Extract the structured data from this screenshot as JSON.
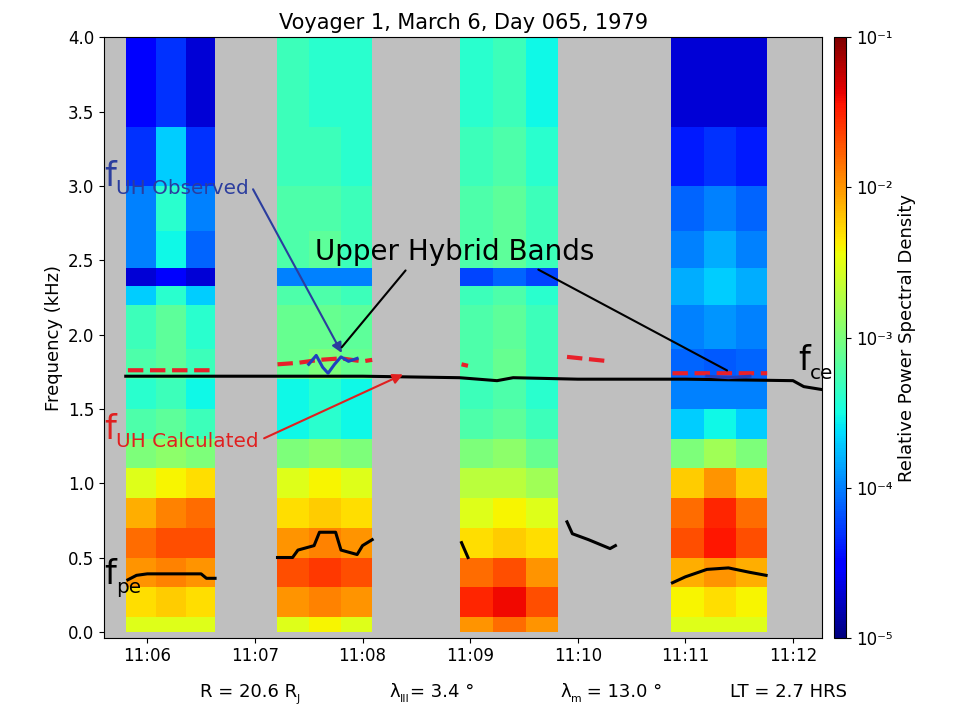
{
  "chart_data": {
    "type": "heatmap",
    "title": "Voyager 1, March 6, Day 065, 1979",
    "y_label": "Frequency (kHz)",
    "xlim": [
      5.6,
      12.27
    ],
    "xticks": [
      {
        "value": 6,
        "label": "11:06"
      },
      {
        "value": 7,
        "label": "11:07"
      },
      {
        "value": 8,
        "label": "11:08"
      },
      {
        "value": 9,
        "label": "11:09"
      },
      {
        "value": 10,
        "label": "11:10"
      },
      {
        "value": 11,
        "label": "11:11"
      },
      {
        "value": 12,
        "label": "11:12"
      }
    ],
    "ylim": [
      -0.04,
      4.0
    ],
    "yticks": [
      0.0,
      0.5,
      1.0,
      1.5,
      2.0,
      2.5,
      3.0,
      3.5,
      4.0
    ],
    "frequency_bins": [
      0.0,
      0.1,
      0.3,
      0.5,
      0.7,
      0.9,
      1.1,
      1.3,
      1.5,
      1.7,
      1.9,
      2.2,
      2.33,
      2.45,
      2.7,
      3.0,
      3.4,
      4.0
    ],
    "segments": [
      {
        "x": [
          5.8,
          6.08,
          6.36,
          6.63
        ],
        "cells": [
          [
            0.003,
            0.005,
            0.01,
            0.015,
            0.008,
            0.003,
            0.001,
            0.0006,
            0.0004,
            0.0006,
            0.0005,
            0.0002,
            2e-05,
            0.0001,
            0.0001,
            5e-05,
            3e-05
          ],
          [
            0.003,
            0.006,
            0.012,
            0.02,
            0.012,
            0.004,
            0.0012,
            0.0007,
            0.0005,
            0.0007,
            0.0007,
            0.0004,
            3e-05,
            0.0003,
            0.0004,
            0.0002,
            5e-05
          ],
          [
            0.003,
            0.005,
            0.01,
            0.02,
            0.015,
            0.005,
            0.001,
            0.0005,
            0.0003,
            0.0005,
            0.0004,
            0.0002,
            2e-05,
            8e-05,
            0.0001,
            5e-05,
            2e-05
          ]
        ]
      },
      {
        "x": [
          7.21,
          7.5,
          7.8,
          8.09
        ],
        "cells": [
          [
            0.003,
            0.01,
            0.02,
            0.01,
            0.005,
            0.003,
            0.001,
            0.0003,
            0.0003,
            0.0008,
            0.0008,
            0.0006,
            0.0001,
            0.0006,
            0.0006,
            0.0005,
            0.0005
          ],
          [
            0.004,
            0.012,
            0.025,
            0.012,
            0.006,
            0.004,
            0.0012,
            0.0004,
            0.0004,
            0.001,
            0.0008,
            0.0006,
            0.0001,
            0.0007,
            0.0006,
            0.0005,
            0.0004
          ],
          [
            0.003,
            0.01,
            0.02,
            0.01,
            0.005,
            0.003,
            0.001,
            0.0003,
            0.0003,
            0.0008,
            0.0007,
            0.0005,
            0.0001,
            0.0005,
            0.0005,
            0.0004,
            0.0004
          ]
        ]
      },
      {
        "x": [
          8.91,
          9.21,
          9.52,
          9.82
        ],
        "cells": [
          [
            0.01,
            0.03,
            0.015,
            0.005,
            0.003,
            0.002,
            0.001,
            0.0006,
            0.0005,
            0.0006,
            0.0006,
            0.0005,
            6e-05,
            0.0006,
            0.0006,
            0.0005,
            0.0004
          ],
          [
            0.015,
            0.04,
            0.02,
            0.006,
            0.004,
            0.002,
            0.0012,
            0.0007,
            0.0006,
            0.0008,
            0.0007,
            0.0006,
            8e-05,
            0.0007,
            0.0007,
            0.0006,
            0.0005
          ],
          [
            0.01,
            0.02,
            0.01,
            0.005,
            0.003,
            0.0015,
            0.0008,
            0.0005,
            0.0004,
            0.0005,
            0.0005,
            0.0004,
            6e-05,
            0.0005,
            0.0005,
            0.0004,
            0.0003
          ]
        ]
      },
      {
        "x": [
          10.87,
          11.17,
          11.47,
          11.76
        ],
        "cells": [
          [
            0.003,
            0.004,
            0.008,
            0.02,
            0.015,
            0.006,
            0.001,
            0.0002,
            0.0001,
            8e-05,
            0.0001,
            0.00015,
            0.00015,
            0.0001,
            8e-05,
            4e-05,
            2e-05
          ],
          [
            0.003,
            0.005,
            0.01,
            0.035,
            0.03,
            0.01,
            0.0015,
            0.0003,
            0.0001,
            7e-05,
            0.00012,
            0.0002,
            0.0002,
            0.00015,
            0.0001,
            5e-05,
            2e-05
          ],
          [
            0.003,
            0.004,
            0.008,
            0.02,
            0.015,
            0.006,
            0.001,
            0.0002,
            0.0001,
            8e-05,
            0.0001,
            0.00015,
            0.00015,
            0.0001,
            8e-05,
            4e-05,
            2e-05
          ]
        ]
      }
    ],
    "colorbar": {
      "label": "Relative Power Spectral Density",
      "range": [
        1e-05,
        0.1
      ],
      "ticks": [
        {
          "value": 1e-05,
          "label": "10⁻⁵"
        },
        {
          "value": 0.0001,
          "label": "10⁻⁴"
        },
        {
          "value": 0.001,
          "label": "10⁻³"
        },
        {
          "value": 0.01,
          "label": "10⁻²"
        },
        {
          "value": 0.1,
          "label": "10⁻¹"
        }
      ]
    },
    "series": [
      {
        "type": "line",
        "color": "#000000",
        "line_style": "solid",
        "x": [
          5.8,
          7.0,
          8.0,
          8.9,
          9.25,
          9.4,
          10.0,
          11.0,
          12.0,
          12.1,
          12.27
        ],
        "values": [
          1.72,
          1.72,
          1.72,
          1.71,
          1.69,
          1.71,
          1.7,
          1.7,
          1.69,
          1.65,
          1.63
        ]
      },
      {
        "type": "line",
        "color": "#000000",
        "line_style": "solid",
        "x": [
          5.82,
          5.9,
          6.0,
          6.5,
          6.55,
          6.63,
          null,
          7.21,
          7.35,
          7.4,
          7.55,
          7.6,
          7.75,
          7.8,
          7.95,
          8.0,
          8.09,
          null,
          8.92,
          8.98,
          null,
          9.9,
          9.95,
          10.1,
          10.3,
          10.35,
          null,
          10.88,
          11.0,
          11.2,
          11.4,
          11.6,
          11.75
        ],
        "values": [
          0.35,
          0.38,
          0.39,
          0.39,
          0.36,
          0.36,
          null,
          0.5,
          0.5,
          0.55,
          0.58,
          0.67,
          0.67,
          0.55,
          0.52,
          0.58,
          0.62,
          null,
          0.6,
          0.5,
          null,
          0.74,
          0.66,
          0.62,
          0.56,
          0.58,
          null,
          0.33,
          0.37,
          0.42,
          0.43,
          0.4,
          0.38
        ]
      },
      {
        "type": "line",
        "color": "#e8202a",
        "line_style": "dashed",
        "x": [
          5.82,
          6.62,
          null,
          7.21,
          7.4,
          7.6,
          7.8,
          8.0,
          8.09,
          null,
          8.92,
          8.98,
          null,
          9.9,
          10.3,
          null,
          10.88,
          11.76
        ],
        "values": [
          1.76,
          1.76,
          null,
          1.8,
          1.81,
          1.83,
          1.84,
          1.82,
          1.83,
          null,
          1.8,
          1.79,
          null,
          1.85,
          1.82,
          null,
          1.74,
          1.74
        ]
      },
      {
        "type": "line",
        "color": "#2040c0",
        "line_style": "solid",
        "x": [
          7.5,
          7.57,
          7.63,
          7.68,
          7.74,
          7.8,
          7.87,
          7.95,
          null,
          11.2,
          11.4,
          11.6
        ],
        "values": [
          1.8,
          1.86,
          1.78,
          1.74,
          1.8,
          1.85,
          1.82,
          1.84,
          null,
          1.72,
          1.71,
          1.72
        ]
      }
    ],
    "annotations": [
      {
        "runs": [
          {
            "text": "f"
          },
          {
            "text": "UH Observed",
            "sub": true
          }
        ],
        "x": 5.6,
        "y": 3.0,
        "color": "#2b3d9e",
        "targets": [
          [
            7.82,
            1.86
          ]
        ]
      },
      {
        "runs": [
          {
            "text": "f"
          },
          {
            "text": "UH Calculated",
            "sub": true
          }
        ],
        "x": 5.6,
        "y": 1.3,
        "color": "#e02020",
        "targets": [
          [
            8.4,
            1.74
          ]
        ]
      },
      {
        "runs": [
          {
            "text": "f"
          },
          {
            "text": "ce",
            "sub": true
          }
        ],
        "x": 12.05,
        "y": 1.76,
        "color": "#000000"
      },
      {
        "runs": [
          {
            "text": "f"
          },
          {
            "text": "pe",
            "sub": true
          }
        ],
        "x": 5.6,
        "y": 0.32,
        "color": "#000000"
      },
      {
        "runs": [
          {
            "text": "Upper Hybrid Bands"
          }
        ],
        "x": 7.56,
        "y": 2.5,
        "color": "#000000",
        "targets": [
          [
            7.79,
            1.9
          ],
          [
            11.41,
            1.75
          ]
        ]
      }
    ],
    "footer": [
      [
        {
          "text": "R = 20.6 R"
        },
        {
          "text": "J",
          "sub": true
        }
      ],
      [
        {
          "text": "λ"
        },
        {
          "text": "III",
          "sub": true
        },
        {
          "text": "= 3.4 °"
        }
      ],
      [
        {
          "text": "λ"
        },
        {
          "text": "m",
          "sub": true
        },
        {
          "text": " = 13.0 °"
        }
      ],
      [
        {
          "text": "LT = 2.7 HRS"
        }
      ]
    ]
  }
}
